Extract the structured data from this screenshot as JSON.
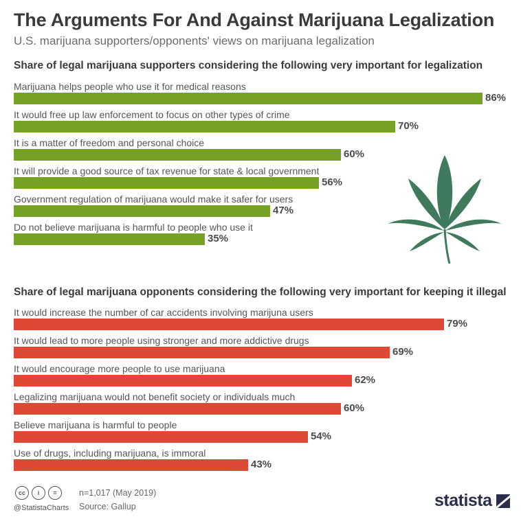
{
  "header": {
    "title": "The Arguments For And Against Marijuana Legalization",
    "subtitle": "U.S. marijuana supporters/opponents' views on marijuana legalization"
  },
  "chart_data": [
    {
      "type": "bar",
      "orientation": "horizontal",
      "title": "Share of legal marijuana supporters considering the following very important for legalization",
      "color": "#76a124",
      "categories": [
        "Marijuana helps people who use it for medical reasons",
        "It would free up law enforcement to focus on other types of crime",
        "It is a matter of freedom and personal choice",
        "It will provide a good source of tax revenue for state & local government",
        "Government regulation of marijuana would make it safer for users",
        "Do not believe marijuana is harmful to people who use it"
      ],
      "values": [
        86,
        70,
        60,
        56,
        47,
        35
      ],
      "value_labels": [
        "86%",
        "70%",
        "60%",
        "56%",
        "47%",
        "35%"
      ],
      "unit": "%",
      "xlim": [
        0,
        100
      ]
    },
    {
      "type": "bar",
      "orientation": "horizontal",
      "title": "Share of legal marijuana opponents considering the following very important for keeping it illegal",
      "color": "#de4935",
      "categories": [
        "It would increase the number of car accidents involving marijuna users",
        "It would lead to more people using stronger and more addictive drugs",
        "It would encourage more people to use marijuana",
        "Legalizing marijuana would not benefit society or individuals much",
        "Believe marijuana is harmful to people",
        "Use of drugs, including marijuana, is immoral"
      ],
      "values": [
        79,
        69,
        62,
        60,
        54,
        43
      ],
      "value_labels": [
        "79%",
        "69%",
        "62%",
        "60%",
        "54%",
        "43%"
      ],
      "unit": "%",
      "xlim": [
        0,
        100
      ]
    }
  ],
  "footer": {
    "icons": [
      "cc-icon",
      "by-icon",
      "nd-icon"
    ],
    "icon_glyphs": [
      "cc",
      "i",
      "="
    ],
    "handle": "@StatistaCharts",
    "sample": "n=1,017 (May 2019)",
    "source": "Source: Gallup",
    "brand": "statista"
  },
  "illustration": {
    "icon": "cannabis-leaf-icon",
    "color": "#3e7a5b"
  }
}
